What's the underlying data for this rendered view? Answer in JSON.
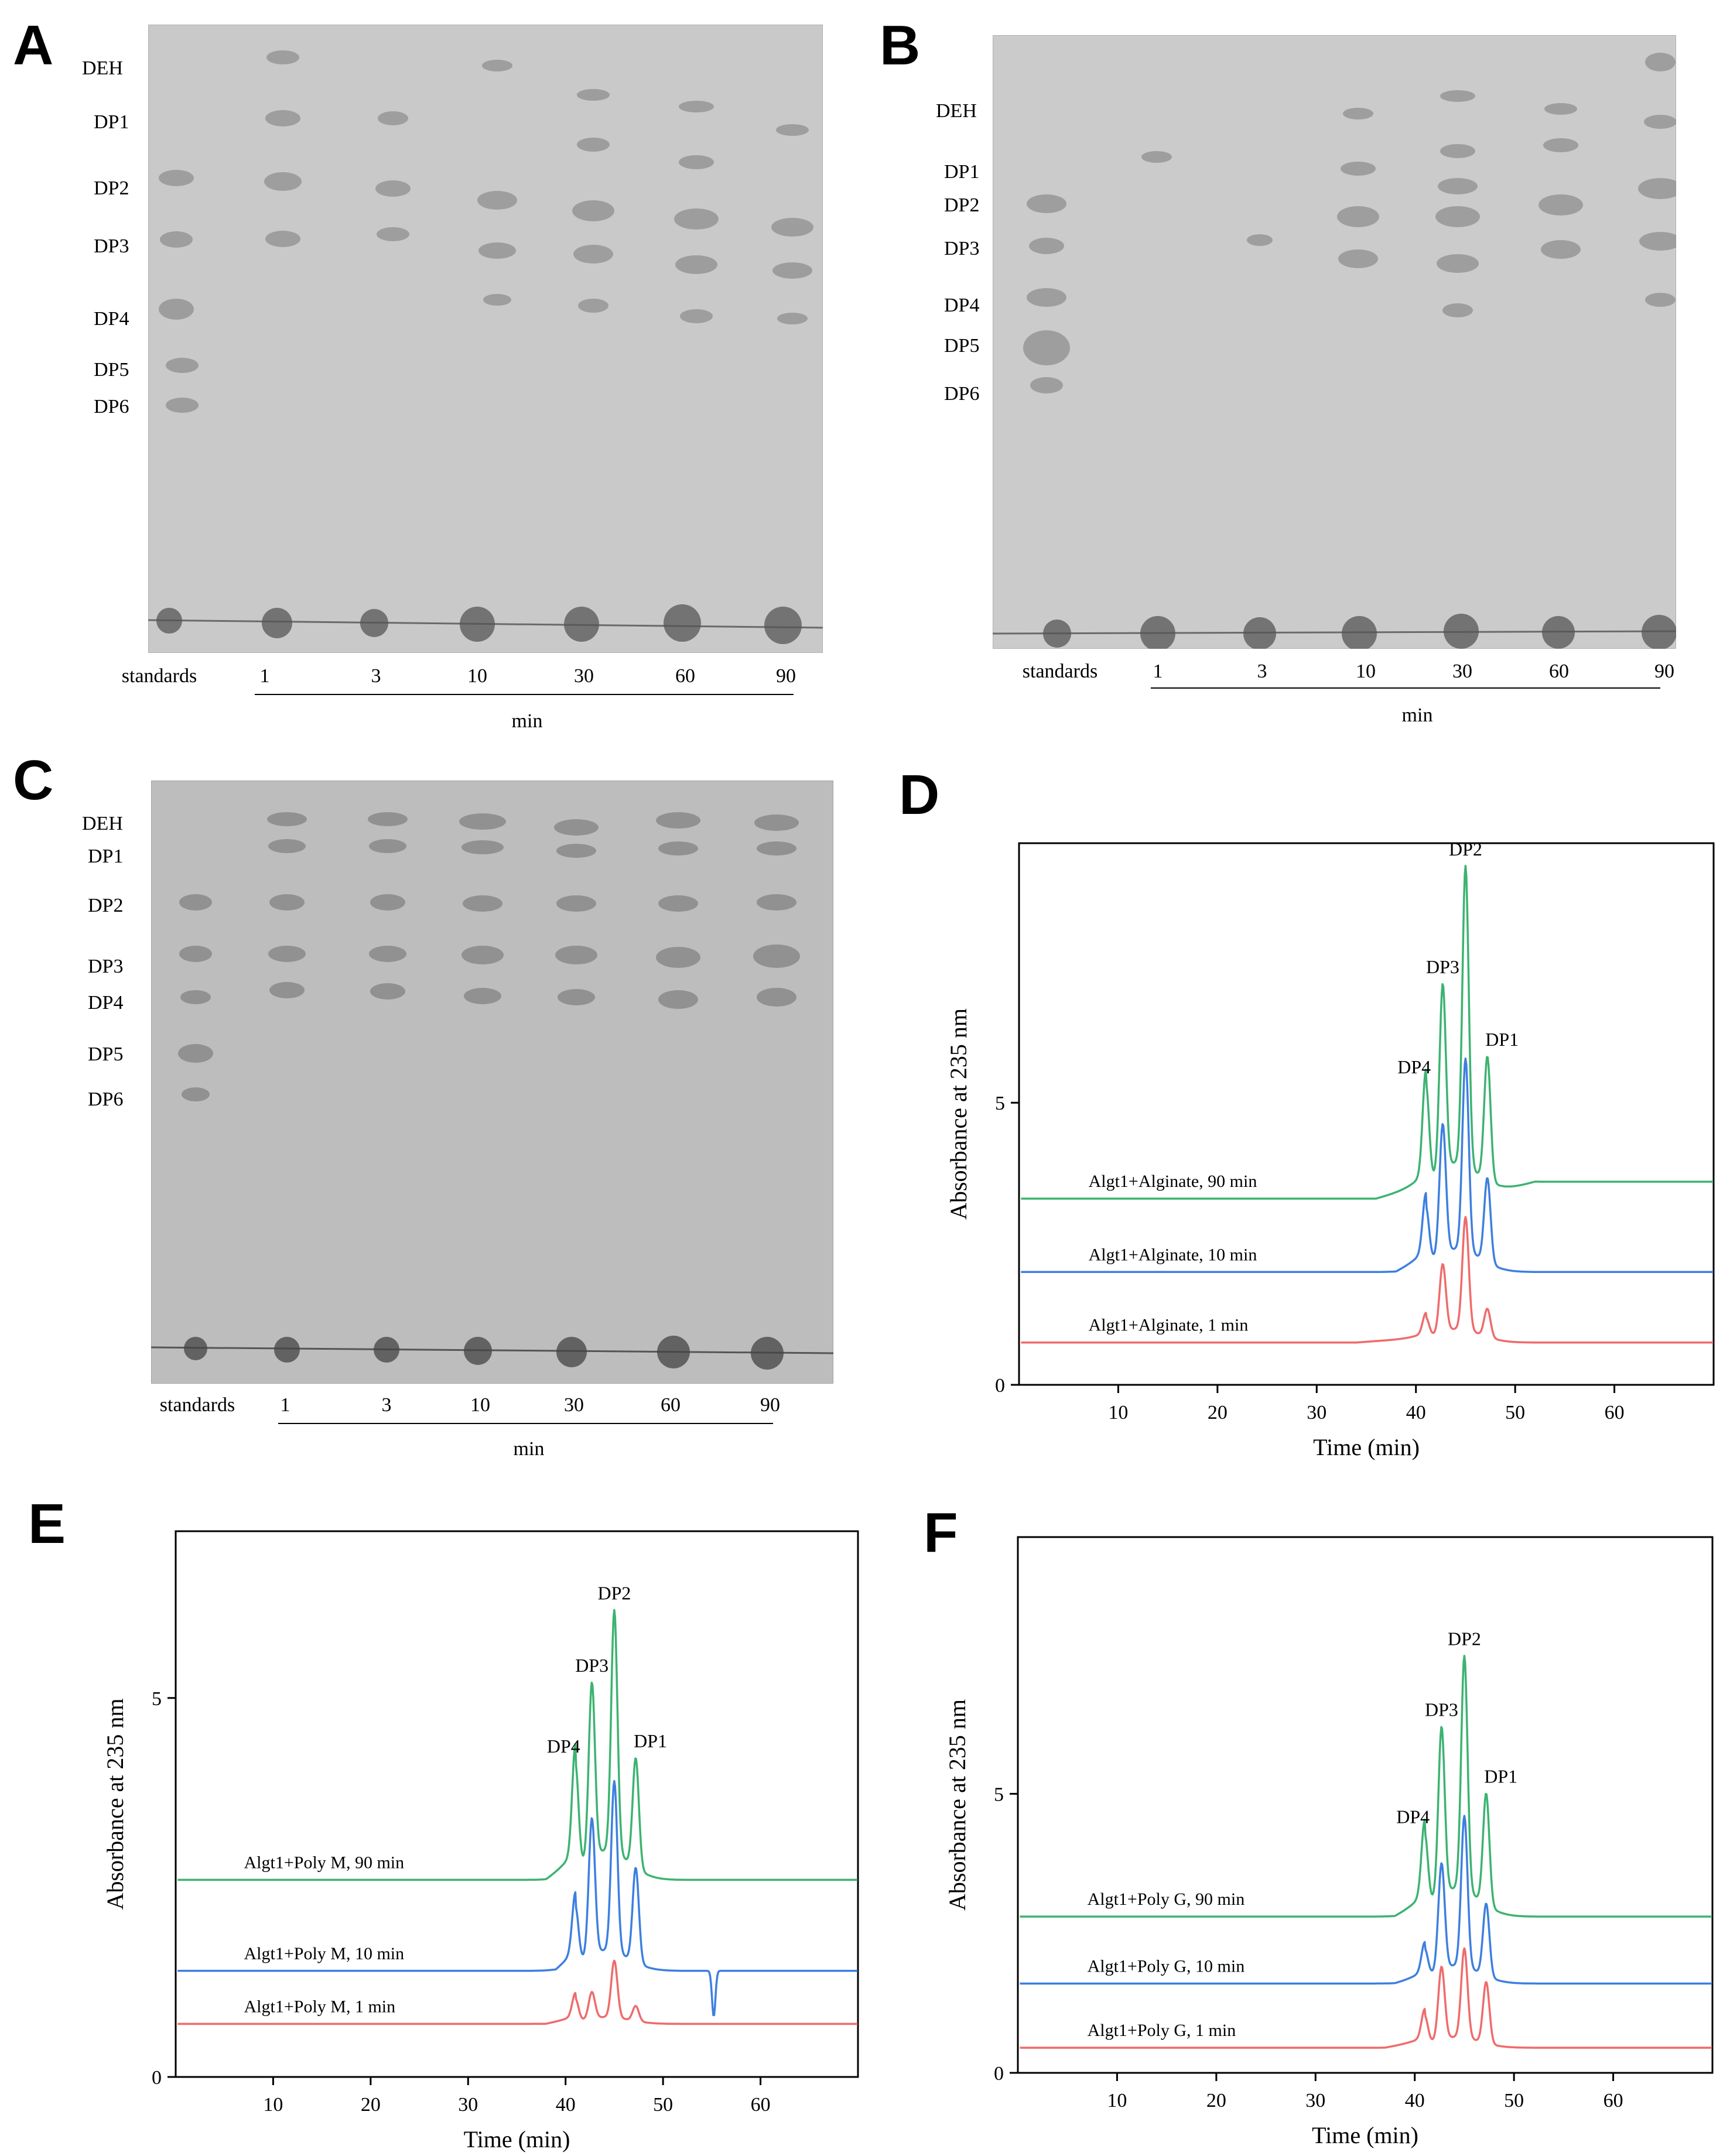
{
  "figure": {
    "panel_letters": [
      "A",
      "B",
      "C",
      "D",
      "E",
      "F"
    ]
  },
  "tlc_panels": [
    {
      "letter": "A",
      "row_labels": [
        "DEH",
        "DP1",
        "DP2",
        "DP3",
        "DP4",
        "DP5",
        "DP6"
      ],
      "standards_label": "standards",
      "time_labels": [
        "1",
        "3",
        "10",
        "30",
        "60",
        "90"
      ],
      "unit_label": "min"
    },
    {
      "letter": "B",
      "row_labels": [
        "DEH",
        "DP1",
        "DP2",
        "DP3",
        "DP4",
        "DP5",
        "DP6"
      ],
      "standards_label": "standards",
      "time_labels": [
        "1",
        "3",
        "10",
        "30",
        "60",
        "90"
      ],
      "unit_label": "min"
    },
    {
      "letter": "C",
      "row_labels": [
        "DEH",
        "DP1",
        "DP2",
        "DP3",
        "DP4",
        "DP5",
        "DP6"
      ],
      "standards_label": "standards",
      "time_labels": [
        "1",
        "3",
        "10",
        "30",
        "60",
        "90"
      ],
      "unit_label": "min"
    }
  ],
  "chart_data": [
    {
      "panel": "D",
      "type": "line",
      "title": "",
      "xlabel": "Time (min)",
      "ylabel": "Absorbance at 235 nm",
      "xlim": [
        0,
        70
      ],
      "ylim": [
        0,
        9.6
      ],
      "xticks": [
        10,
        20,
        30,
        40,
        50,
        60
      ],
      "yticks": [
        0,
        5
      ],
      "peak_labels": [
        "DP4",
        "DP3",
        "DP2",
        "DP1"
      ],
      "peak_times": [
        41,
        42.7,
        45,
        47.2
      ],
      "series": [
        {
          "name": "Algt1+Alginate, 90 min",
          "color": "#3cb371",
          "baseline_start": 3.3,
          "baseline_end": 3.6,
          "peak_heights": [
            1.8,
            3.3,
            5.3,
            2.2
          ],
          "rise_start": 36
        },
        {
          "name": "Algt1+Alginate, 10 min",
          "color": "#3d7fe0",
          "baseline_start": 2.0,
          "baseline_end": 2.0,
          "peak_heights": [
            1.0,
            2.3,
            3.4,
            1.5
          ],
          "rise_start": 38
        },
        {
          "name": "Algt1+Alginate, 1 min",
          "color": "#ef6b6b",
          "baseline_start": 0.75,
          "baseline_end": 0.75,
          "peak_heights": [
            0.35,
            1.2,
            2.0,
            0.5
          ],
          "rise_start": 34
        }
      ]
    },
    {
      "panel": "E",
      "type": "line",
      "title": "",
      "xlabel": "Time (min)",
      "ylabel": "Absorbance at 235 nm",
      "xlim": [
        0,
        70
      ],
      "ylim": [
        0,
        7.2
      ],
      "xticks": [
        10,
        20,
        30,
        40,
        50,
        60
      ],
      "yticks": [
        0,
        5
      ],
      "peak_labels": [
        "DP4",
        "DP3",
        "DP2",
        "DP1"
      ],
      "peak_times": [
        41,
        42.7,
        45,
        47.2
      ],
      "series": [
        {
          "name": "Algt1+Poly M, 90 min",
          "color": "#3cb371",
          "baseline_start": 2.6,
          "baseline_end": 2.6,
          "peak_heights": [
            1.4,
            2.3,
            3.2,
            1.45
          ],
          "rise_start": 38
        },
        {
          "name": "Algt1+Poly M, 10 min",
          "color": "#3d7fe0",
          "baseline_start": 1.4,
          "baseline_end": 1.4,
          "peak_heights": [
            0.75,
            1.8,
            2.25,
            1.25
          ],
          "rise_start": 39
        },
        {
          "name": "Algt1+Poly M, 1 min",
          "color": "#ef6b6b",
          "baseline_start": 0.7,
          "baseline_end": 0.7,
          "peak_heights": [
            0.3,
            0.35,
            0.75,
            0.2
          ],
          "rise_start": 38
        }
      ]
    },
    {
      "panel": "F",
      "type": "line",
      "title": "",
      "xlabel": "Time (min)",
      "ylabel": "Absorbance at 235 nm",
      "xlim": [
        0,
        70
      ],
      "ylim": [
        0,
        9.6
      ],
      "xticks": [
        10,
        20,
        30,
        40,
        50,
        60
      ],
      "yticks": [
        0,
        5
      ],
      "peak_labels": [
        "DP4",
        "DP3",
        "DP2",
        "DP1"
      ],
      "peak_times": [
        41,
        42.7,
        45,
        47.2
      ],
      "series": [
        {
          "name": "Algt1+Poly G, 90 min",
          "color": "#3cb371",
          "baseline_start": 2.8,
          "baseline_end": 2.8,
          "peak_heights": [
            1.3,
            3.0,
            4.2,
            2.0
          ],
          "rise_start": 38
        },
        {
          "name": "Algt1+Poly G, 10 min",
          "color": "#3d7fe0",
          "baseline_start": 1.6,
          "baseline_end": 1.6,
          "peak_heights": [
            0.5,
            1.9,
            2.7,
            1.3
          ],
          "rise_start": 38
        },
        {
          "name": "Algt1+Poly G, 1 min",
          "color": "#ef6b6b",
          "baseline_start": 0.45,
          "baseline_end": 0.45,
          "peak_heights": [
            0.5,
            1.3,
            1.6,
            1.1
          ],
          "rise_start": 37
        }
      ]
    }
  ]
}
